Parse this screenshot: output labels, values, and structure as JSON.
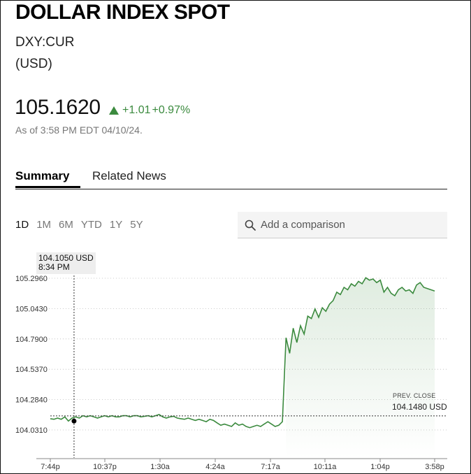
{
  "header": {
    "title": "DOLLAR INDEX SPOT",
    "ticker": "DXY:CUR",
    "currency": "(USD)"
  },
  "quote": {
    "price": "105.1620",
    "change": "+1.01",
    "change_pct": "+0.97%",
    "as_of": "As of 3:58 PM EDT 04/10/24.",
    "up_color": "#3b8a3e"
  },
  "tabs": [
    {
      "label": "Summary",
      "active": true
    },
    {
      "label": "Related News",
      "active": false
    }
  ],
  "ranges": [
    {
      "label": "1D",
      "active": true
    },
    {
      "label": "1M",
      "active": false
    },
    {
      "label": "6M",
      "active": false
    },
    {
      "label": "YTD",
      "active": false
    },
    {
      "label": "1Y",
      "active": false
    },
    {
      "label": "5Y",
      "active": false
    }
  ],
  "compare": {
    "placeholder": "Add a comparison",
    "icon": "search-icon"
  },
  "tooltip": {
    "value": "104.1050 USD",
    "time": "8:34 PM"
  },
  "prev_close": {
    "label": "PREV. CLOSE",
    "value": "104.1480 USD"
  },
  "chart_data": {
    "type": "area",
    "y_ticks": [
      "105.2960",
      "105.0430",
      "104.7900",
      "104.5370",
      "104.2840",
      "104.0310"
    ],
    "ylim": [
      103.98,
      105.38
    ],
    "x_ticks": [
      "7:44p",
      "10:37p",
      "1:30a",
      "4:24a",
      "7:17a",
      "10:11a",
      "1:04p",
      "3:58p"
    ],
    "prev_close": 104.148,
    "grid": true,
    "series": [
      {
        "color": "#3b8a3e",
        "values": [
          104.125,
          104.12,
          104.13,
          104.12,
          104.14,
          104.105,
          104.13,
          104.14,
          104.13,
          104.15,
          104.14,
          104.15,
          104.14,
          104.13,
          104.14,
          104.15,
          104.14,
          104.15,
          104.14,
          104.14,
          104.15,
          104.15,
          104.14,
          104.15,
          104.15,
          104.14,
          104.145,
          104.15,
          104.14,
          104.15,
          104.16,
          104.14,
          104.13,
          104.14,
          104.145,
          104.13,
          104.125,
          104.12,
          104.13,
          104.12,
          104.11,
          104.12,
          104.11,
          104.1,
          104.12,
          104.11,
          104.09,
          104.07,
          104.08,
          104.07,
          104.06,
          104.09,
          104.07,
          104.08,
          104.06,
          104.05,
          104.06,
          104.07,
          104.06,
          104.08,
          104.1,
          104.08,
          104.06,
          104.07,
          104.1,
          104.8,
          104.67,
          104.88,
          104.76,
          104.9,
          104.83,
          104.98,
          104.96,
          105.04,
          104.97,
          105.05,
          105.02,
          105.08,
          105.11,
          105.18,
          105.16,
          105.22,
          105.2,
          105.25,
          105.23,
          105.27,
          105.25,
          105.3,
          105.28,
          105.29,
          105.26,
          105.28,
          105.18,
          105.22,
          105.17,
          105.15,
          105.2,
          105.22,
          105.19,
          105.2,
          105.17,
          105.24,
          105.26,
          105.22,
          105.21,
          105.2,
          105.19
        ]
      }
    ]
  }
}
